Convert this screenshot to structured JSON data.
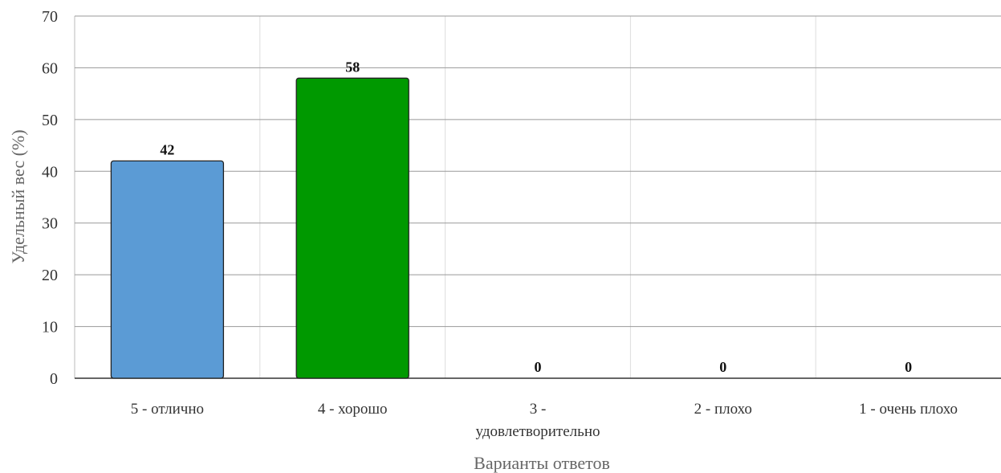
{
  "chart_data": {
    "type": "bar",
    "title": "",
    "xlabel": "Варианты ответов",
    "ylabel": "Удельный вес (%)",
    "ylim": [
      0,
      70
    ],
    "yticks": [
      0,
      10,
      20,
      30,
      40,
      50,
      60,
      70
    ],
    "categories": [
      "5 - отлично",
      "4 - хорошо",
      "3 - удовлетворительно",
      "2 - плохо",
      "1 - очень плохо"
    ],
    "category_lines": [
      [
        "5 - отлично"
      ],
      [
        "4 - хорошо"
      ],
      [
        "3 -",
        "удовлетворительно"
      ],
      [
        "2 - плохо"
      ],
      [
        "1 - очень плохо"
      ]
    ],
    "values": [
      42,
      58,
      0,
      0,
      0
    ],
    "data_labels": [
      "42",
      "58",
      "0",
      "0",
      "0"
    ],
    "colors": [
      "#5b9bd5",
      "#009900",
      "#cccccc",
      "#cccccc",
      "#cccccc"
    ],
    "grid": true,
    "legend": "none"
  }
}
